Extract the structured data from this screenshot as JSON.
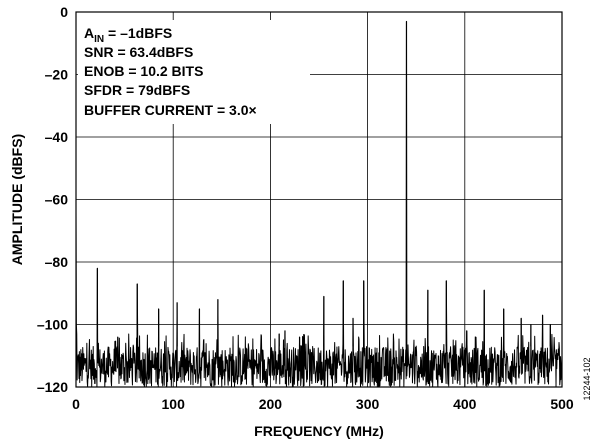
{
  "chart_data": {
    "type": "line",
    "title": "",
    "xlabel": "FREQUENCY (MHz)",
    "ylabel": "AMPLITUDE (dBFS)",
    "xlim": [
      0,
      500
    ],
    "ylim": [
      -120,
      0
    ],
    "xticks": [
      0,
      100,
      200,
      300,
      400,
      500
    ],
    "yticks": [
      0,
      -20,
      -40,
      -60,
      -80,
      -100,
      -120
    ],
    "grid": true,
    "annotations": {
      "ain_prefix": "A",
      "ain_sub": "IN",
      "ain_suffix": " = –1dBFS",
      "snr": "SNR = 63.4dBFS",
      "enob": "ENOB = 10.2 BITS",
      "sfdr": "SFDR = 79dBFS",
      "buffer": "BUFFER CURRENT = 3.0×"
    },
    "figure_id": "12244-102",
    "noise_floor": {
      "min": -120,
      "max": -107
    },
    "spurs": [
      {
        "x": 22,
        "y": -82
      },
      {
        "x": 43,
        "y": -104
      },
      {
        "x": 63,
        "y": -87
      },
      {
        "x": 85,
        "y": -95
      },
      {
        "x": 104,
        "y": -93
      },
      {
        "x": 127,
        "y": -95
      },
      {
        "x": 146,
        "y": -92
      },
      {
        "x": 209,
        "y": -103
      },
      {
        "x": 215,
        "y": -102
      },
      {
        "x": 230,
        "y": -104
      },
      {
        "x": 255,
        "y": -91
      },
      {
        "x": 275,
        "y": -86
      },
      {
        "x": 285,
        "y": -98
      },
      {
        "x": 296,
        "y": -86
      },
      {
        "x": 340,
        "y": -3
      },
      {
        "x": 362,
        "y": -89
      },
      {
        "x": 381,
        "y": -86
      },
      {
        "x": 402,
        "y": -102
      },
      {
        "x": 420,
        "y": -89
      },
      {
        "x": 440,
        "y": -95
      },
      {
        "x": 458,
        "y": -98
      },
      {
        "x": 468,
        "y": -100
      },
      {
        "x": 480,
        "y": -97
      },
      {
        "x": 488,
        "y": -100
      }
    ]
  }
}
